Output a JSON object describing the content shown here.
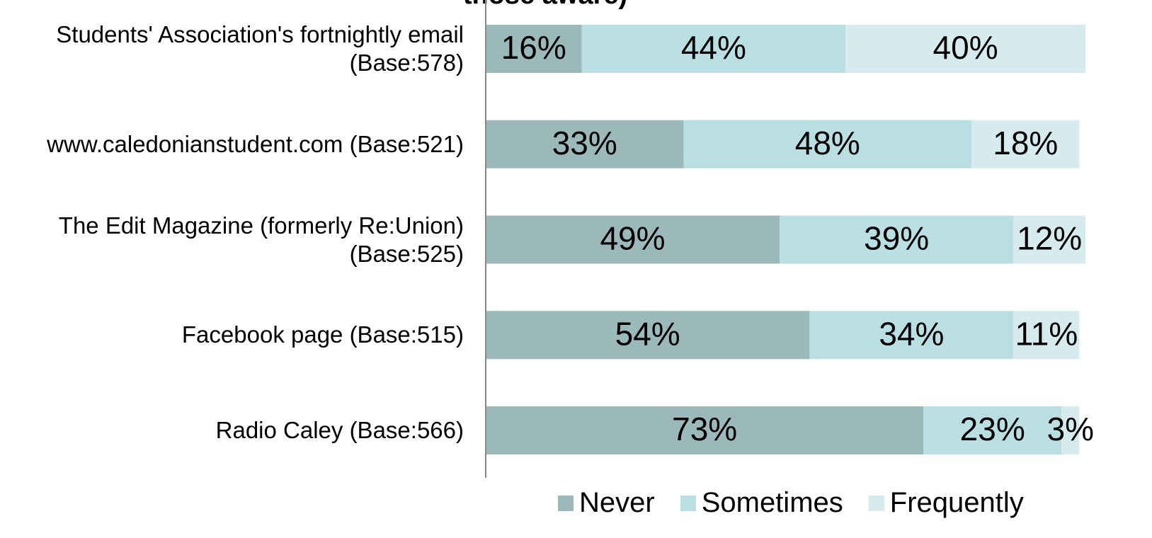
{
  "chart_data": {
    "type": "stacked-bar-horizontal",
    "title": "those aware)",
    "categories": [
      "Students' Association's fortnightly email\n(Base:578)",
      "www.caledonianstudent.com (Base:521)",
      "The Edit Magazine (formerly Re:Union)\n(Base:525)",
      "Facebook page (Base:515)",
      "Radio Caley (Base:566)"
    ],
    "series": [
      {
        "name": "Never",
        "color": "#9bb9bb",
        "values": [
          16,
          33,
          49,
          54,
          73
        ],
        "value_labels": [
          "16%",
          "33%",
          "49%",
          "54%",
          "73%"
        ]
      },
      {
        "name": "Sometimes",
        "color": "#badfe3",
        "values": [
          44,
          48,
          39,
          34,
          23
        ],
        "value_labels": [
          "44%",
          "48%",
          "39%",
          "34%",
          "23%"
        ]
      },
      {
        "name": "Frequently",
        "color": "#d6ebee",
        "values": [
          40,
          18,
          12,
          11,
          3
        ],
        "value_labels": [
          "40%",
          "18%",
          "12%",
          "11%",
          "3%"
        ]
      }
    ],
    "xlim": [
      0,
      100
    ],
    "legend": "bottom"
  }
}
